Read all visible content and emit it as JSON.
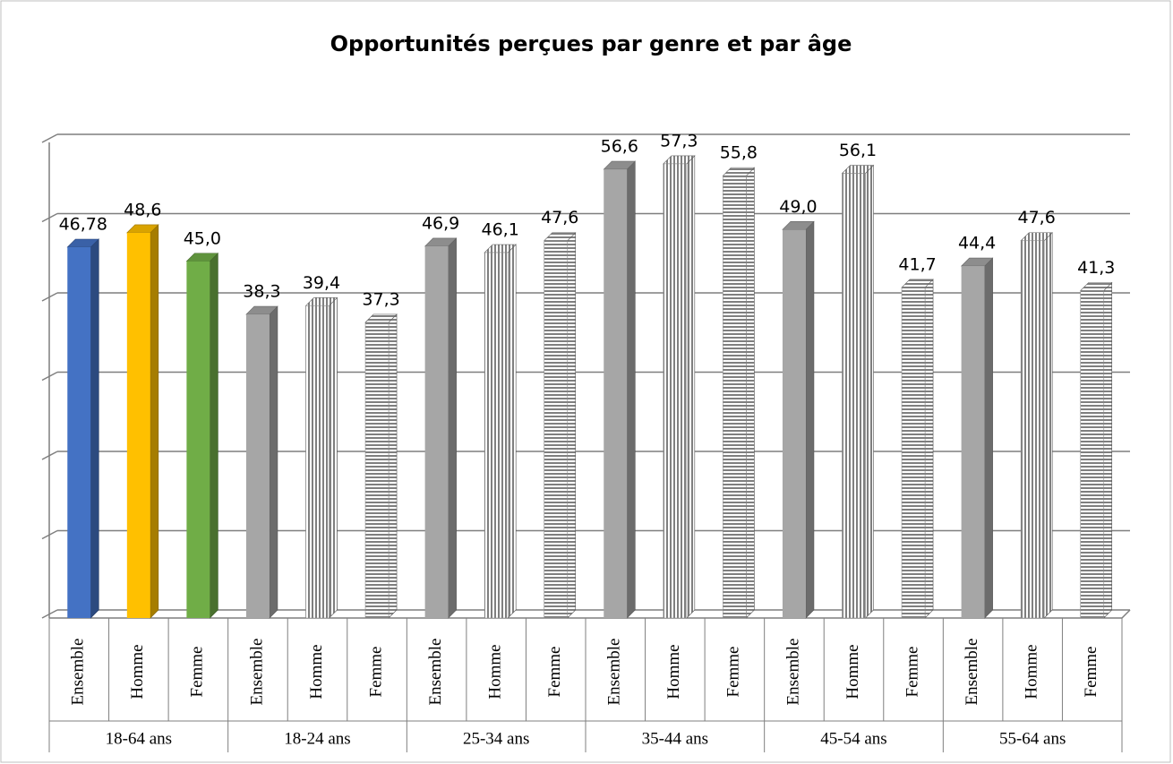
{
  "chart_data": {
    "type": "bar3d",
    "title": "Opportunités perçues par genre et par âge",
    "groups": [
      "18-64 ans",
      "18-24 ans",
      "25-34 ans",
      "35-44 ans",
      "45-54 ans",
      "55-64 ans"
    ],
    "categories": [
      "Ensemble",
      "Homme",
      "Femme",
      "Ensemble",
      "Homme",
      "Femme",
      "Ensemble",
      "Homme",
      "Femme",
      "Ensemble",
      "Homme",
      "Femme",
      "Ensemble",
      "Homme",
      "Femme",
      "Ensemble",
      "Homme",
      "Femme"
    ],
    "values": [
      46.78,
      48.6,
      45.0,
      38.3,
      39.4,
      37.3,
      46.9,
      46.1,
      47.6,
      56.6,
      57.3,
      55.8,
      49.0,
      56.1,
      41.7,
      44.4,
      47.6,
      41.3
    ],
    "value_labels": [
      "46,78",
      "48,6",
      "45,0",
      "38,3",
      "39,4",
      "37,3",
      "46,9",
      "46,1",
      "47,6",
      "56,6",
      "57,3",
      "55,8",
      "49,0",
      "56,1",
      "41,7",
      "44,4",
      "47,6",
      "41,3"
    ],
    "colors": [
      "#4472c4",
      "#ffc000",
      "#70ad47",
      "#a6a6a6",
      "#a6a6a6",
      "#a6a6a6",
      "#a6a6a6",
      "#a6a6a6",
      "#a6a6a6",
      "#a6a6a6",
      "#a6a6a6",
      "#a6a6a6",
      "#a6a6a6",
      "#a6a6a6",
      "#a6a6a6",
      "#a6a6a6",
      "#a6a6a6",
      "#a6a6a6"
    ],
    "patterns": [
      "solid",
      "solid",
      "solid",
      "solid",
      "vertical",
      "horizontal",
      "solid",
      "vertical",
      "horizontal",
      "solid",
      "vertical",
      "horizontal",
      "solid",
      "vertical",
      "horizontal",
      "solid",
      "vertical",
      "horizontal"
    ],
    "ylim": [
      0,
      60
    ],
    "yticks": [
      0,
      10,
      20,
      30,
      40,
      50,
      60
    ],
    "grid": true
  }
}
